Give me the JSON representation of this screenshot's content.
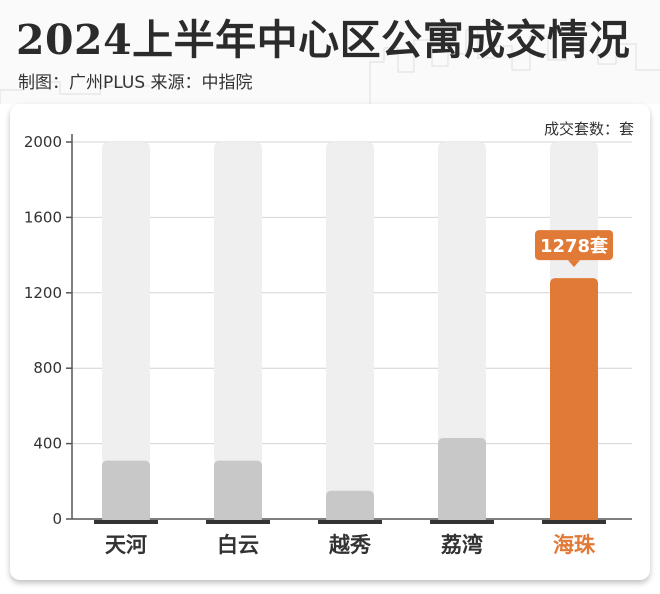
{
  "title": "2024上半年中心区公寓成交情况",
  "source": "制图：广州PLUS  来源：中指院",
  "chart_data": {
    "type": "bar",
    "categories": [
      "天河",
      "白云",
      "越秀",
      "荔湾",
      "海珠"
    ],
    "values": [
      310,
      310,
      150,
      430,
      1278
    ],
    "highlight_index": 4,
    "highlight_label": "1278套",
    "unit_label": "成交套数：套",
    "ylim": [
      0,
      2000
    ],
    "yticks": [
      0,
      400,
      800,
      1200,
      1600,
      2000
    ],
    "grid": true,
    "colors": {
      "bar": "#c8c8c8",
      "highlight": "#e17937",
      "track": "#efefef"
    }
  }
}
